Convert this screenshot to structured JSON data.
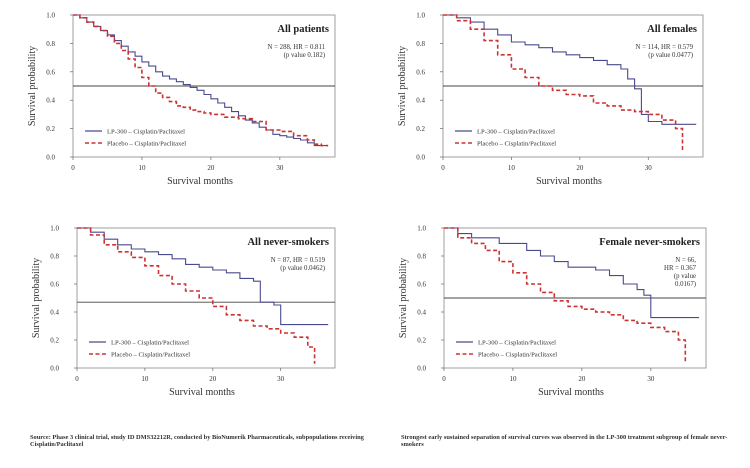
{
  "chart_data": [
    {
      "type": "line",
      "title": "All patients",
      "xlabel": "Survival months",
      "ylabel": "Survival probability",
      "xlim": [
        0,
        38
      ],
      "ylim": [
        0,
        1.0
      ],
      "xticks": [
        "0",
        "10",
        "20",
        "30"
      ],
      "yticks": [
        "0.0",
        "0.2",
        "0.4",
        "0.6",
        "0.8",
        "1.0"
      ],
      "reference_line_y": 0.5,
      "annotation": [
        "N = 288, HR = 0.811",
        "(p value 0.182)"
      ],
      "legend_position": "bottom-left",
      "series": [
        {
          "name": "LP-300 – Cisplatin/Paclitaxel",
          "color": "#4a4a8e",
          "style": "solid",
          "x": [
            0,
            1,
            2,
            3,
            4,
            5,
            6,
            7,
            8,
            9,
            10,
            11,
            12,
            13,
            14,
            15,
            16,
            17,
            18,
            19,
            20,
            21,
            22,
            23,
            24,
            25,
            26,
            27,
            28,
            29,
            30,
            31,
            32,
            33,
            34,
            35,
            36,
            37
          ],
          "y": [
            1.0,
            0.98,
            0.95,
            0.92,
            0.89,
            0.86,
            0.82,
            0.78,
            0.74,
            0.71,
            0.67,
            0.64,
            0.6,
            0.57,
            0.55,
            0.53,
            0.51,
            0.49,
            0.47,
            0.44,
            0.41,
            0.38,
            0.35,
            0.32,
            0.29,
            0.26,
            0.24,
            0.21,
            0.19,
            0.16,
            0.15,
            0.14,
            0.13,
            0.12,
            0.1,
            0.08,
            0.08,
            0.08
          ]
        },
        {
          "name": "Placebo – Cisplatin/Paclitaxel",
          "color": "#cc3333",
          "style": "dashed",
          "x": [
            0,
            1,
            2,
            3,
            4,
            5,
            6,
            7,
            8,
            9,
            10,
            11,
            12,
            13,
            14,
            15,
            16,
            17,
            18,
            19,
            20,
            22,
            24,
            26,
            28,
            30,
            32,
            34,
            35,
            36,
            37
          ],
          "y": [
            1.0,
            0.98,
            0.95,
            0.92,
            0.89,
            0.85,
            0.8,
            0.75,
            0.69,
            0.63,
            0.56,
            0.5,
            0.45,
            0.42,
            0.39,
            0.36,
            0.35,
            0.33,
            0.32,
            0.31,
            0.3,
            0.28,
            0.27,
            0.25,
            0.19,
            0.18,
            0.15,
            0.12,
            0.09,
            0.08,
            0.08
          ]
        }
      ]
    },
    {
      "type": "line",
      "title": "All females",
      "xlabel": "Survival months",
      "ylabel": "Survival probability",
      "xlim": [
        0,
        38
      ],
      "ylim": [
        0,
        1.0
      ],
      "xticks": [
        "0",
        "10",
        "20",
        "30"
      ],
      "yticks": [
        "0.0",
        "0.2",
        "0.4",
        "0.6",
        "0.8",
        "1.0"
      ],
      "reference_line_y": 0.5,
      "annotation": [
        "N = 114, HR = 0.579",
        "(p value 0.0477)"
      ],
      "legend_position": "bottom-left",
      "series": [
        {
          "name": "LP-300 – Cisplatin/Paclitaxel",
          "color": "#4a4a8e",
          "style": "solid",
          "x": [
            0,
            2,
            4,
            6,
            8,
            10,
            12,
            14,
            16,
            18,
            20,
            22,
            24,
            26,
            27,
            28,
            29,
            30,
            32,
            34,
            36,
            37
          ],
          "y": [
            1.0,
            0.98,
            0.95,
            0.9,
            0.86,
            0.81,
            0.79,
            0.77,
            0.74,
            0.72,
            0.7,
            0.68,
            0.65,
            0.62,
            0.55,
            0.48,
            0.3,
            0.25,
            0.23,
            0.23,
            0.23,
            0.23
          ]
        },
        {
          "name": "Placebo – Cisplatin/Paclitaxel",
          "color": "#cc3333",
          "style": "dashed",
          "x": [
            0,
            2,
            4,
            6,
            8,
            10,
            12,
            14,
            16,
            18,
            20,
            22,
            24,
            26,
            28,
            30,
            32,
            34,
            35
          ],
          "y": [
            1.0,
            0.96,
            0.9,
            0.82,
            0.72,
            0.62,
            0.56,
            0.5,
            0.47,
            0.44,
            0.43,
            0.38,
            0.36,
            0.33,
            0.32,
            0.3,
            0.26,
            0.2,
            0.04
          ]
        }
      ]
    },
    {
      "type": "line",
      "title": "All never-smokers",
      "xlabel": "Survival months",
      "ylabel": "Survival probability",
      "xlim": [
        0,
        38
      ],
      "ylim": [
        0,
        1.0
      ],
      "xticks": [
        "0",
        "10",
        "20",
        "30"
      ],
      "yticks": [
        "0.0",
        "0.2",
        "0.4",
        "0.6",
        "0.8",
        "1.0"
      ],
      "reference_line_y": 0.47,
      "annotation": [
        "N = 87, HR = 0.519",
        "(p value 0.0462)"
      ],
      "legend_position": "bottom-left",
      "series": [
        {
          "name": "LP-300 – Cisplatin/Paclitaxel",
          "color": "#4a4a8e",
          "style": "solid",
          "x": [
            0,
            2,
            4,
            6,
            8,
            10,
            12,
            14,
            16,
            18,
            20,
            22,
            24,
            26,
            27,
            28,
            29,
            30,
            32,
            34,
            36,
            37
          ],
          "y": [
            1.0,
            0.97,
            0.92,
            0.88,
            0.85,
            0.83,
            0.81,
            0.78,
            0.74,
            0.72,
            0.7,
            0.68,
            0.64,
            0.62,
            0.47,
            0.47,
            0.45,
            0.31,
            0.31,
            0.31,
            0.31,
            0.31
          ]
        },
        {
          "name": "Placebo – Cisplatin/Paclitaxel",
          "color": "#cc3333",
          "style": "dashed",
          "x": [
            0,
            2,
            4,
            6,
            8,
            10,
            12,
            14,
            16,
            18,
            20,
            22,
            24,
            26,
            28,
            30,
            32,
            34,
            35
          ],
          "y": [
            1.0,
            0.95,
            0.88,
            0.83,
            0.79,
            0.73,
            0.66,
            0.6,
            0.55,
            0.5,
            0.44,
            0.38,
            0.34,
            0.3,
            0.28,
            0.25,
            0.22,
            0.15,
            0.03
          ]
        }
      ]
    },
    {
      "type": "line",
      "title": "Female never-smokers",
      "xlabel": "Survival months",
      "ylabel": "Survival probability",
      "xlim": [
        0,
        38
      ],
      "ylim": [
        0,
        1.0
      ],
      "xticks": [
        "0",
        "10",
        "20",
        "30"
      ],
      "yticks": [
        "0.0",
        "0.2",
        "0.4",
        "0.6",
        "0.8",
        "1.0"
      ],
      "reference_line_y": 0.5,
      "annotation": [
        "N = 66,",
        "HR = 0.367",
        "(p value",
        "0.0167)"
      ],
      "legend_position": "bottom-left",
      "series": [
        {
          "name": "LP-300 – Cisplatin/Paclitaxel",
          "color": "#4a4a8e",
          "style": "solid",
          "x": [
            0,
            2,
            4,
            6,
            8,
            10,
            12,
            14,
            16,
            18,
            20,
            22,
            24,
            26,
            28,
            29,
            30,
            32,
            34,
            36,
            37
          ],
          "y": [
            1.0,
            0.96,
            0.93,
            0.93,
            0.89,
            0.89,
            0.84,
            0.8,
            0.76,
            0.72,
            0.72,
            0.7,
            0.66,
            0.6,
            0.56,
            0.52,
            0.36,
            0.36,
            0.36,
            0.36,
            0.36
          ]
        },
        {
          "name": "Placebo – Cisplatin/Paclitaxel",
          "color": "#cc3333",
          "style": "dashed",
          "x": [
            0,
            2,
            4,
            6,
            8,
            10,
            12,
            14,
            16,
            18,
            20,
            22,
            24,
            26,
            28,
            30,
            32,
            34,
            35
          ],
          "y": [
            1.0,
            0.93,
            0.89,
            0.84,
            0.76,
            0.68,
            0.6,
            0.54,
            0.48,
            0.44,
            0.42,
            0.4,
            0.38,
            0.34,
            0.32,
            0.29,
            0.26,
            0.2,
            0.04
          ]
        }
      ]
    }
  ],
  "footer": {
    "left": "Source: Phase 3 clinical trial, study ID DMS32212R, conducted by BioNumerik Pharmaceuticals, subpopulations receiving Cisplatin/Paclitaxel",
    "right": "Strongest early sustained separation of survival curves was observed in the LP-300 treatment subgroup of female never-smokers"
  }
}
